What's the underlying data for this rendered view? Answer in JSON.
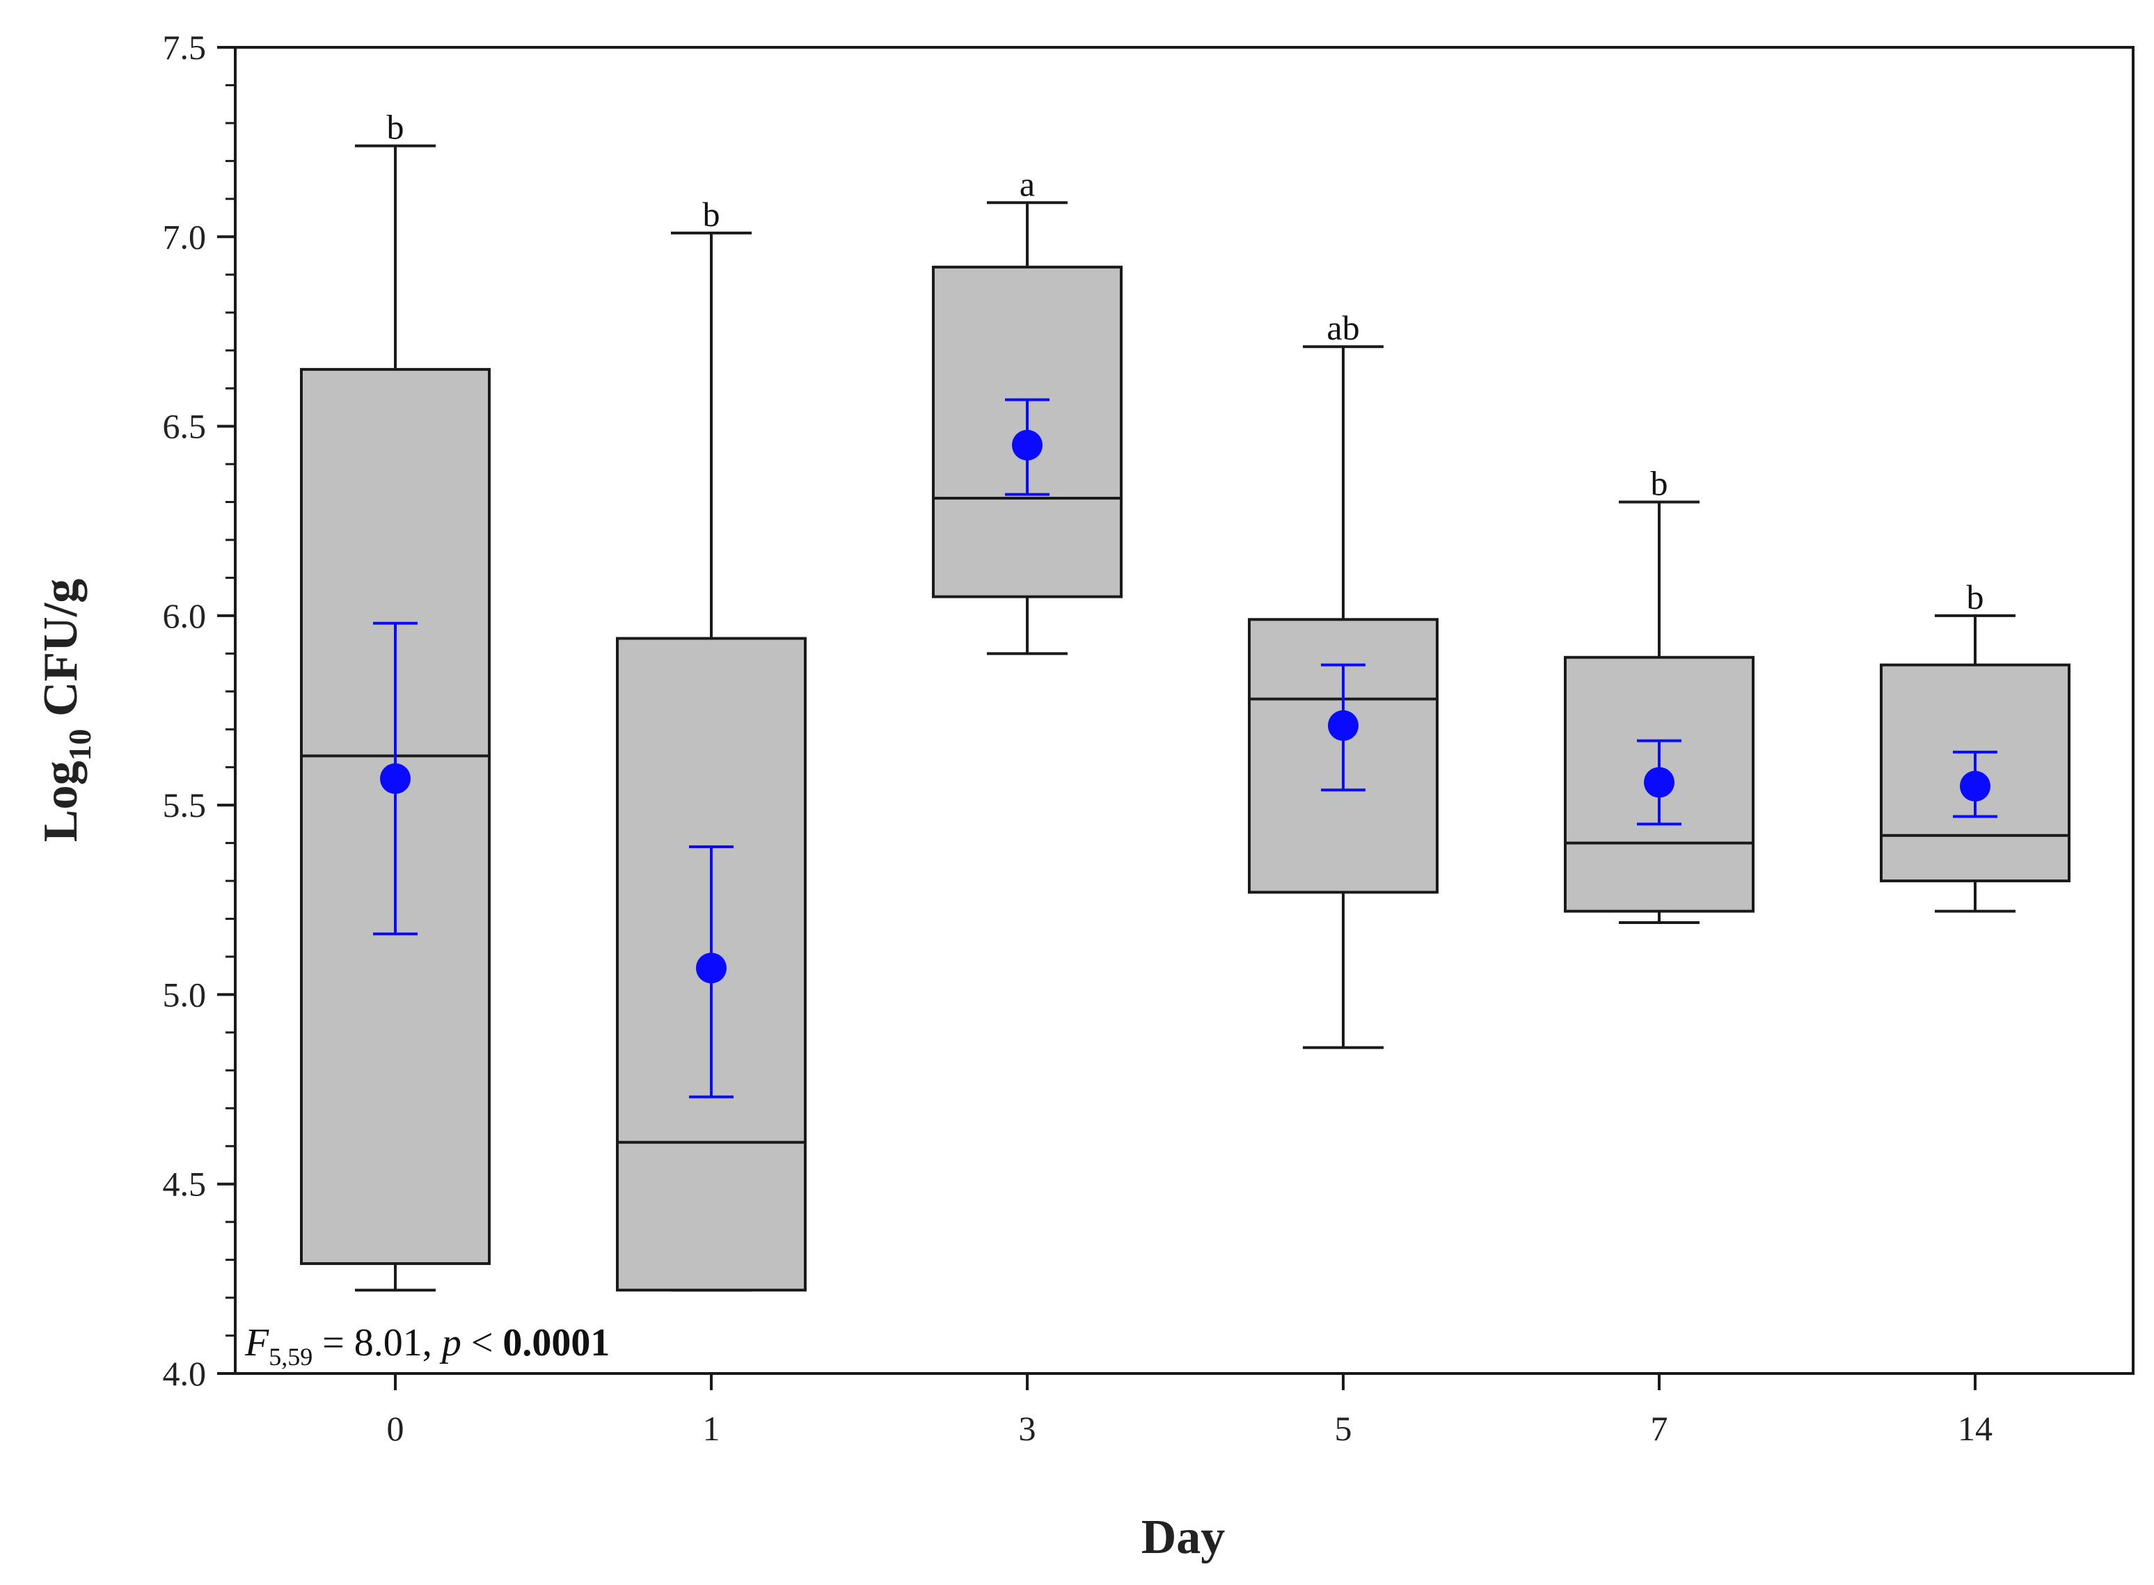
{
  "chart_data": {
    "type": "box",
    "xlabel": "Day",
    "ylabel_main": "Log",
    "ylabel_sub": "10",
    "ylabel_rest": " CFU/g",
    "ylim": [
      4.0,
      7.5
    ],
    "yticks": [
      4.0,
      4.5,
      5.0,
      5.5,
      6.0,
      6.5,
      7.0,
      7.5
    ],
    "ytick_labels": [
      "4.0",
      "4.5",
      "5.0",
      "5.5",
      "6.0",
      "6.5",
      "7.0",
      "7.5"
    ],
    "minor_tick_step": 0.1,
    "categories": [
      "0",
      "1",
      "3",
      "5",
      "7",
      "14"
    ],
    "boxes": [
      {
        "day": "0",
        "whisker_low": 4.22,
        "q1": 4.29,
        "median": 5.63,
        "q3": 6.65,
        "whisker_high": 7.24,
        "mean": 5.57,
        "mean_err_low": 5.16,
        "mean_err_high": 5.98,
        "letter": "b"
      },
      {
        "day": "1",
        "whisker_low": 4.22,
        "q1": 4.22,
        "median": 4.61,
        "q3": 5.94,
        "whisker_high": 7.01,
        "mean": 5.07,
        "mean_err_low": 4.73,
        "mean_err_high": 5.39,
        "letter": "b"
      },
      {
        "day": "3",
        "whisker_low": 5.9,
        "q1": 6.05,
        "median": 6.31,
        "q3": 6.92,
        "whisker_high": 7.09,
        "mean": 6.45,
        "mean_err_low": 6.32,
        "mean_err_high": 6.57,
        "letter": "a"
      },
      {
        "day": "5",
        "whisker_low": 4.86,
        "q1": 5.27,
        "median": 5.78,
        "q3": 5.99,
        "whisker_high": 6.71,
        "mean": 5.71,
        "mean_err_low": 5.54,
        "mean_err_high": 5.87,
        "letter": "ab"
      },
      {
        "day": "7",
        "whisker_low": 5.19,
        "q1": 5.22,
        "median": 5.4,
        "q3": 5.89,
        "whisker_high": 6.3,
        "mean": 5.56,
        "mean_err_low": 5.45,
        "mean_err_high": 5.67,
        "letter": "b"
      },
      {
        "day": "14",
        "whisker_low": 5.22,
        "q1": 5.3,
        "median": 5.42,
        "q3": 5.87,
        "whisker_high": 6.0,
        "mean": 5.55,
        "mean_err_low": 5.47,
        "mean_err_high": 5.64,
        "letter": "b"
      }
    ],
    "stat_F": "F",
    "stat_df": "5,59",
    "stat_eq": " = 8.01, ",
    "stat_p": "p",
    "stat_lt": " < ",
    "stat_pval": "0.0001",
    "colors": {
      "box_fill": "#c0c0c0",
      "box_stroke": "#1a1a1a",
      "mean": "#0a0aff",
      "axis": "#1a1a1a"
    }
  }
}
